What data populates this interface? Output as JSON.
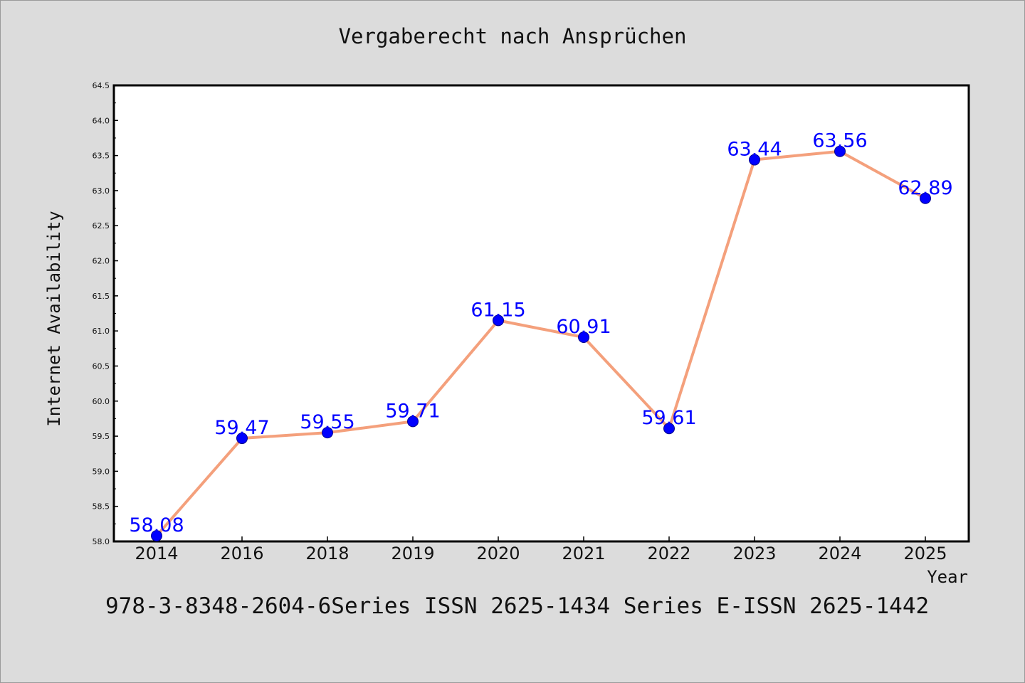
{
  "chart_data": {
    "type": "line",
    "title": "Vergaberecht nach Ansprüchen",
    "xlabel": "Year",
    "ylabel": "Internet Availability",
    "categories": [
      "2014",
      "2016",
      "2018",
      "2019",
      "2020",
      "2021",
      "2022",
      "2023",
      "2024",
      "2025"
    ],
    "series": [
      {
        "values": [
          58.08,
          59.47,
          59.55,
          59.71,
          61.15,
          60.91,
          59.61,
          63.44,
          63.56,
          62.89
        ]
      }
    ],
    "data_labels": [
      "58.08",
      "59.47",
      "59.55",
      "59.71",
      "61.15",
      "60.91",
      "59.61",
      "63.44",
      "63.56",
      "62.89"
    ],
    "ylim": [
      58.0,
      64.5
    ],
    "yticks": [
      "58.0",
      "58.5",
      "59.0",
      "59.5",
      "60.0",
      "60.5",
      "61.0",
      "61.5",
      "62.0",
      "62.5",
      "63.0",
      "63.5",
      "64.0",
      "64.5"
    ],
    "grid": false,
    "legend": "none",
    "line_color": "#f4a07c",
    "marker_color": "#0000ff",
    "label_color": "#0000ff"
  },
  "footer": "978-3-8348-2604-6Series ISSN 2625-1434 Series E-ISSN 2625-1442"
}
